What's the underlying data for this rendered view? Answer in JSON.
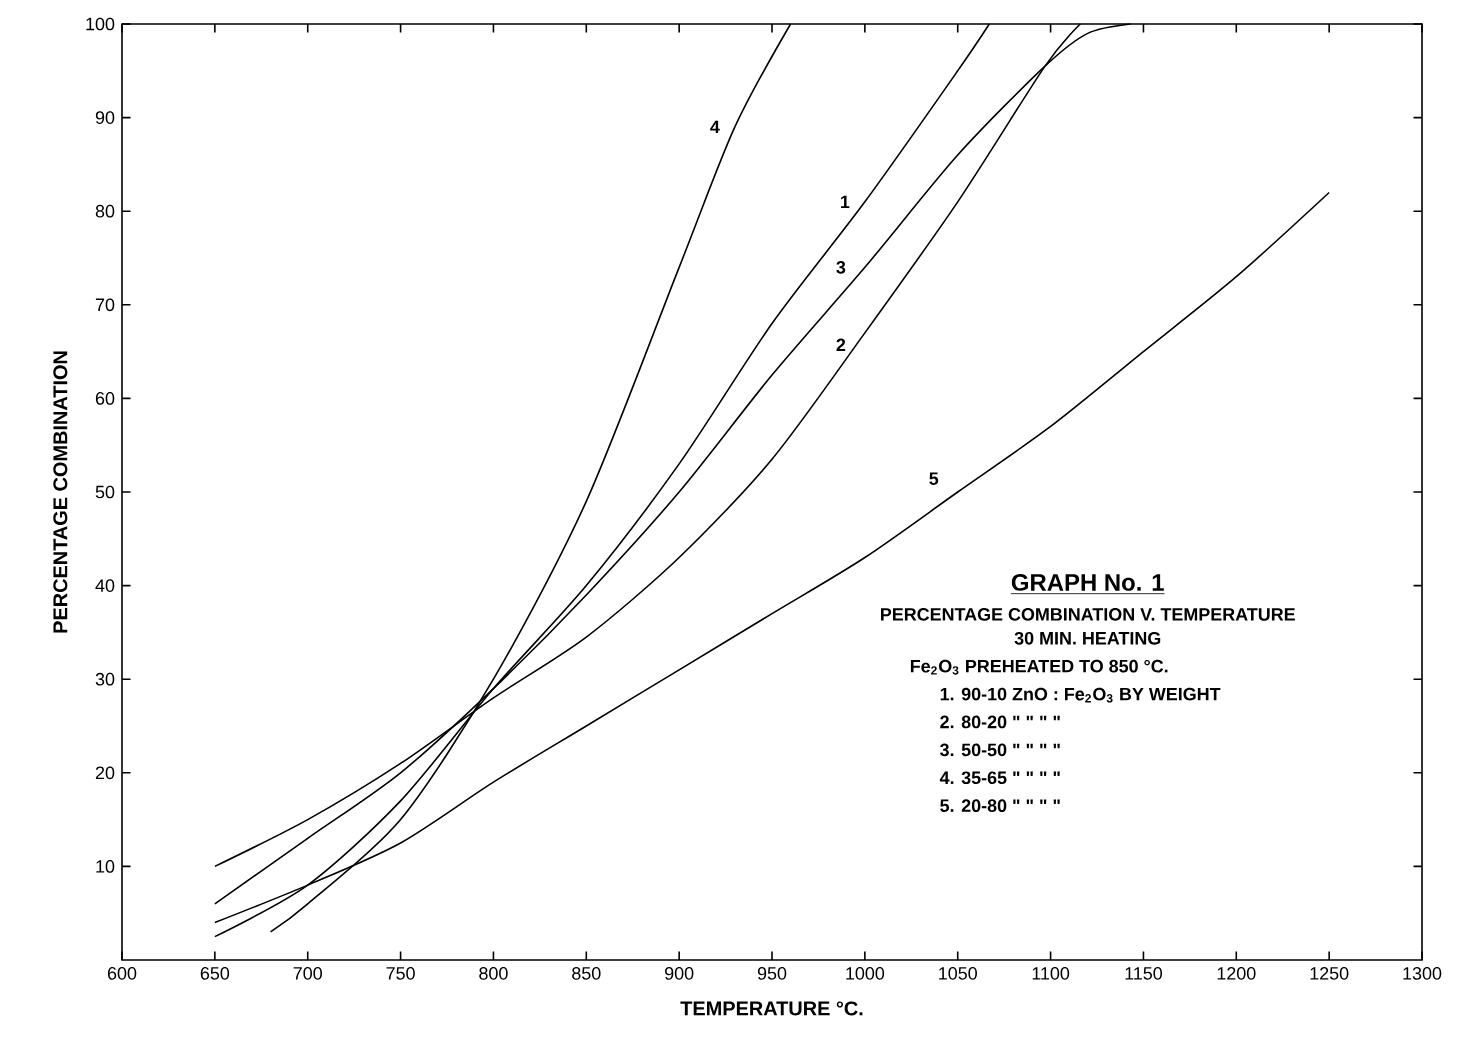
{
  "chart_data": {
    "type": "line",
    "title": "GRAPH No. 1",
    "subtitle": "PERCENTAGE COMBINATION V. TEMPERATURE",
    "xlabel": "TEMPERATURE °C.",
    "ylabel": "PERCENTAGE COMBINATION",
    "annotations": [
      "30 MIN. HEATING",
      "Fe$_{2}$O$_{3}$ PREHEATED TO 850 °C.",
      "1. 90-10 ZnO : Fe$_{2}$O$_{3}$ BY WEIGHT",
      "2. 80-20 \" \" \" \"",
      "3. 50-50 \" \" \" \"",
      "4. 35-65 \" \" \" \"",
      "5. 20-80 \" \" \" \""
    ],
    "xlim": [
      600,
      1300
    ],
    "ylim": [
      0,
      100
    ],
    "xticks": [
      600,
      650,
      700,
      750,
      800,
      850,
      900,
      950,
      1000,
      1050,
      1100,
      1150,
      1200,
      1250,
      1300
    ],
    "yticks": [
      10,
      20,
      30,
      40,
      50,
      60,
      70,
      80,
      90,
      100
    ],
    "grid": false,
    "marker": "none",
    "line_style": "solid",
    "series": [
      {
        "name": "1",
        "color": "#000000",
        "x": [
          650,
          700,
          750,
          800,
          850,
          900,
          950,
          1000,
          1050,
          1067
        ],
        "values": [
          2.5,
          8,
          17,
          29,
          40,
          53,
          68,
          81,
          95,
          100
        ]
      },
      {
        "name": "2",
        "color": "#000000",
        "x": [
          650,
          700,
          750,
          800,
          850,
          900,
          950,
          1000,
          1050,
          1097,
          1116
        ],
        "values": [
          10,
          15,
          21,
          28,
          34.5,
          43,
          53.5,
          67,
          81,
          95.5,
          100
        ]
      },
      {
        "name": "3",
        "color": "#000000",
        "x": [
          650,
          700,
          750,
          800,
          850,
          900,
          950,
          1000,
          1050,
          1097,
          1120,
          1143
        ],
        "values": [
          6,
          13,
          20,
          29,
          39,
          50,
          62.5,
          74,
          86,
          95.5,
          99,
          100
        ]
      },
      {
        "name": "4",
        "color": "#000000",
        "x": [
          680,
          700,
          750,
          800,
          850,
          900,
          930,
          960
        ],
        "values": [
          3,
          6,
          15,
          30,
          49,
          74,
          89,
          100
        ]
      },
      {
        "name": "5",
        "color": "#000000",
        "x": [
          650,
          700,
          750,
          800,
          850,
          900,
          950,
          1000,
          1050,
          1100,
          1150,
          1200,
          1250
        ],
        "values": [
          4,
          8,
          12.5,
          19,
          25,
          31,
          37,
          43,
          50,
          57,
          65,
          73,
          82
        ]
      }
    ]
  }
}
